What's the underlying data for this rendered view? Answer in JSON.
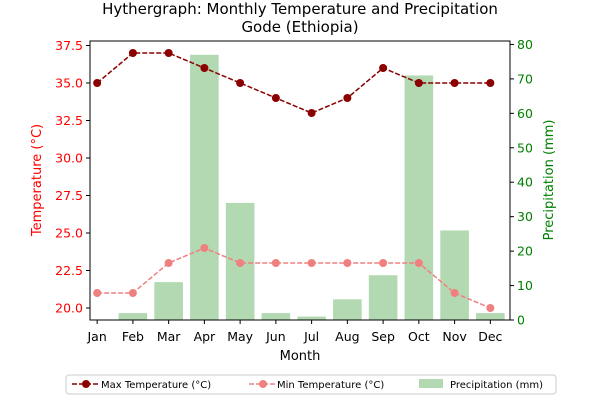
{
  "chart_data": {
    "type": "bar",
    "title": "Hythergraph: Monthly Temperature and Precipitation",
    "subtitle": "Gode (Ethiopia)",
    "xlabel": "Month",
    "ylabel_left": "Temperature (°C)",
    "ylabel_right": "Precipitation (mm)",
    "categories": [
      "Jan",
      "Feb",
      "Mar",
      "Apr",
      "May",
      "Jun",
      "Jul",
      "Aug",
      "Sep",
      "Oct",
      "Nov",
      "Dec"
    ],
    "ylim_left": [
      19.2,
      37.8
    ],
    "yticks_left": [
      "20.0",
      "22.5",
      "25.0",
      "27.5",
      "30.0",
      "32.5",
      "35.0",
      "37.5"
    ],
    "ylim_right": [
      0,
      81
    ],
    "yticks_right": [
      "0",
      "10",
      "20",
      "30",
      "40",
      "50",
      "60",
      "70",
      "80"
    ],
    "series": [
      {
        "name": "Max Temperature (°C)",
        "kind": "line",
        "axis": "left",
        "color": "#8b0000",
        "values": [
          35,
          37,
          37,
          36,
          35,
          34,
          33,
          34,
          36,
          35,
          35,
          35
        ]
      },
      {
        "name": "Min Temperature (°C)",
        "kind": "line",
        "axis": "left",
        "color": "#f08080",
        "values": [
          21,
          21,
          23,
          24,
          23,
          23,
          23,
          23,
          23,
          23,
          21,
          20
        ]
      },
      {
        "name": "Precipitation (mm)",
        "kind": "bar",
        "axis": "right",
        "color": "#b2d9b2",
        "values": [
          0,
          2,
          11,
          77,
          34,
          2,
          1,
          6,
          13,
          71,
          26,
          2
        ]
      }
    ],
    "legend_position": "bottom",
    "grid": false,
    "left_axis_color": "#ff0000",
    "right_axis_color": "#008000"
  }
}
